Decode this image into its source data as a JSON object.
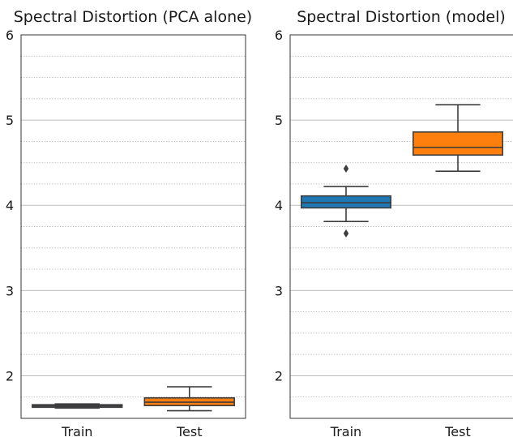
{
  "chart_data": [
    {
      "type": "box",
      "title": "Spectral Distortion (PCA alone)",
      "categories": [
        "Train",
        "Test"
      ],
      "ylim": [
        1.5,
        6.0
      ],
      "yticks": [
        "2",
        "3",
        "4",
        "5",
        "6"
      ],
      "grid": {
        "major": true,
        "minor": true
      },
      "colors": [
        "#1f77b4",
        "#ff7f0e"
      ],
      "boxes": [
        {
          "category": "Train",
          "whisker_low": 1.62,
          "q1": 1.63,
          "median": 1.645,
          "q3": 1.66,
          "whisker_high": 1.67,
          "outliers": []
        },
        {
          "category": "Test",
          "whisker_low": 1.59,
          "q1": 1.65,
          "median": 1.69,
          "q3": 1.74,
          "whisker_high": 1.87,
          "outliers": []
        }
      ]
    },
    {
      "type": "box",
      "title": "Spectral Distortion (model)",
      "categories": [
        "Train",
        "Test"
      ],
      "ylim": [
        1.5,
        6.0
      ],
      "yticks": [
        "2",
        "3",
        "4",
        "5",
        "6"
      ],
      "grid": {
        "major": true,
        "minor": true
      },
      "colors": [
        "#1f77b4",
        "#ff7f0e"
      ],
      "boxes": [
        {
          "category": "Train",
          "whisker_low": 3.81,
          "q1": 3.97,
          "median": 4.03,
          "q3": 4.11,
          "whisker_high": 4.22,
          "outliers": [
            3.67,
            4.43
          ]
        },
        {
          "category": "Test",
          "whisker_low": 4.4,
          "q1": 4.59,
          "median": 4.68,
          "q3": 4.86,
          "whisker_high": 5.18,
          "outliers": []
        }
      ]
    }
  ]
}
